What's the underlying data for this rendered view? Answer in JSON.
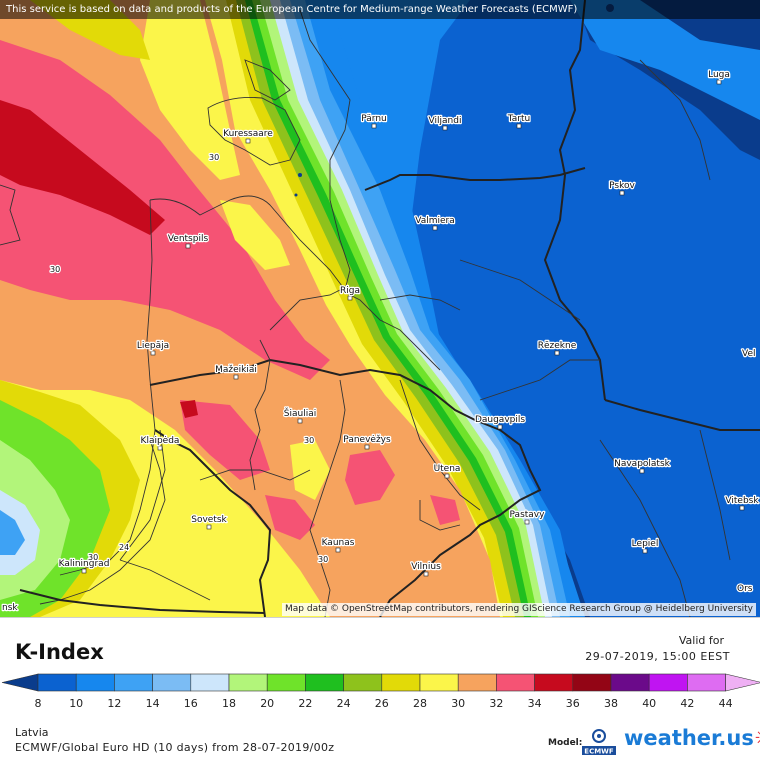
{
  "header": {
    "disclaimer": "This service is based on data and products of the European Centre for Medium-range Weather Forecasts (ECMWF)"
  },
  "map": {
    "attribution": "Map data © OpenStreetMap contributors, rendering GIScience Research Group @ Heidelberg University",
    "cities": [
      {
        "name": "Kuressaare",
        "lon": 22.49,
        "lat": 58.25
      },
      {
        "name": "Pärnu",
        "lon": 24.5,
        "lat": 58.39
      },
      {
        "name": "Viljandi",
        "lon": 25.59,
        "lat": 58.36
      },
      {
        "name": "Tartu",
        "lon": 26.72,
        "lat": 58.38
      },
      {
        "name": "Luga",
        "lon": 29.85,
        "lat": 58.74
      },
      {
        "name": "Pskov",
        "lon": 28.33,
        "lat": 57.82
      },
      {
        "name": "Valmiera",
        "lon": 25.43,
        "lat": 57.54
      },
      {
        "name": "Ventspils",
        "lon": 21.57,
        "lat": 57.39
      },
      {
        "name": "Riga",
        "lon": 24.11,
        "lat": 56.95
      },
      {
        "name": "Rēzekne",
        "lon": 27.33,
        "lat": 56.51
      },
      {
        "name": "Liepāja",
        "lon": 21.01,
        "lat": 56.51
      },
      {
        "name": "Mažeikiai",
        "lon": 22.34,
        "lat": 56.31
      },
      {
        "name": "Šiauliai",
        "lon": 23.32,
        "lat": 55.93
      },
      {
        "name": "Daugavpils",
        "lon": 26.54,
        "lat": 55.87
      },
      {
        "name": "Klaipėda",
        "lon": 21.14,
        "lat": 55.7
      },
      {
        "name": "Panevėžys",
        "lon": 24.36,
        "lat": 55.73
      },
      {
        "name": "Utena",
        "lon": 25.6,
        "lat": 55.5
      },
      {
        "name": "Navapolatsk",
        "lon": 28.64,
        "lat": 55.53
      },
      {
        "name": "Vitebsk",
        "lon": 30.2,
        "lat": 55.19
      },
      {
        "name": "Sovetsk",
        "lon": 21.87,
        "lat": 55.08
      },
      {
        "name": "Pastavy",
        "lon": 26.83,
        "lat": 55.11
      },
      {
        "name": "Kaunas",
        "lon": 23.9,
        "lat": 54.9
      },
      {
        "name": "Lepiel",
        "lon": 28.69,
        "lat": 54.88
      },
      {
        "name": "Kaliningrad",
        "lon": 20.51,
        "lat": 54.71
      },
      {
        "name": "Vilnius",
        "lon": 25.28,
        "lat": 54.69
      },
      {
        "name": "Velikiye Luki",
        "lon": 30.53,
        "lat": 56.34
      },
      {
        "name": "Orsha",
        "lon": 30.42,
        "lat": 54.51
      }
    ],
    "value_labels": [
      {
        "text": "30",
        "lon": 22.3,
        "lat": 57.92
      },
      {
        "text": "30",
        "lon": 20.4,
        "lat": 57.13
      },
      {
        "text": "30",
        "lon": 23.4,
        "lat": 55.75
      },
      {
        "text": "30",
        "lon": 23.85,
        "lat": 54.79
      },
      {
        "text": "24",
        "lon": 20.95,
        "lat": 54.88
      },
      {
        "text": "30",
        "lon": 20.22,
        "lat": 54.79
      }
    ],
    "edge_labels": {
      "left": "nsk",
      "right_top": "Vel",
      "right_mid": "Vitebsk",
      "right_bottom": "Ors"
    }
  },
  "chart_data": {
    "type": "heatmap",
    "title": "K-Index",
    "valid_label": "Valid for",
    "valid_time": "29-07-2019, 15:00 EEST",
    "ticks": [
      8,
      10,
      12,
      14,
      16,
      18,
      20,
      22,
      24,
      26,
      28,
      30,
      32,
      34,
      36,
      38,
      40,
      42,
      44
    ],
    "colors": [
      "#0a3c8c",
      "#0b62d0",
      "#1687ee",
      "#3ea2f4",
      "#7bbcf4",
      "#cde6fb",
      "#b2f57a",
      "#6fe32a",
      "#1fbf1f",
      "#8ec21c",
      "#e2da08",
      "#fbf54a",
      "#f6a35e",
      "#f55374",
      "#c60a1e",
      "#930515",
      "#6b0a8a",
      "#c014f2",
      "#de6cf2",
      "#efb0f4"
    ],
    "region": "Latvia",
    "model": "ECMWF/Global Euro HD (10 days) from 28-07-2019/00z",
    "model_label": "Model:",
    "brand": "weather",
    "brand_tld": ".us"
  }
}
